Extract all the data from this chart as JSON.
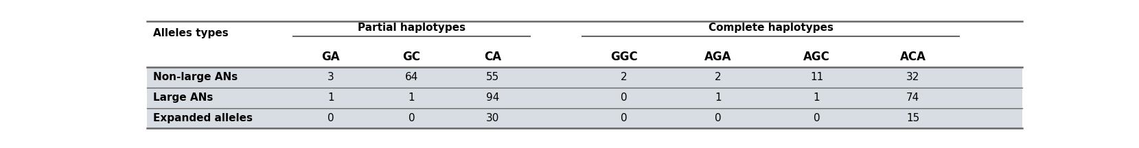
{
  "col_header_row2": [
    "",
    "GA",
    "GC",
    "CA",
    "GGC",
    "AGA",
    "AGC",
    "ACA"
  ],
  "rows": [
    [
      "Non-large ANs",
      "3",
      "64",
      "55",
      "2",
      "2",
      "11",
      "32"
    ],
    [
      "Large ANs",
      "1",
      "1",
      "94",
      "0",
      "1",
      "1",
      "74"
    ],
    [
      "Expanded alleles",
      "0",
      "0",
      "30",
      "0",
      "0",
      "0",
      "15"
    ]
  ],
  "partial_label": "Partial haplotypes",
  "complete_label": "Complete haplotypes",
  "alleles_label": "Alleles types",
  "bg_color": "#d8dde3",
  "white": "#ffffff",
  "border_color": "#888888",
  "text_color": "#000000",
  "header_fontsize": 11,
  "subheader_fontsize": 12,
  "data_fontsize": 11,
  "figsize": [
    16.59,
    2.16
  ],
  "dpi": 100
}
